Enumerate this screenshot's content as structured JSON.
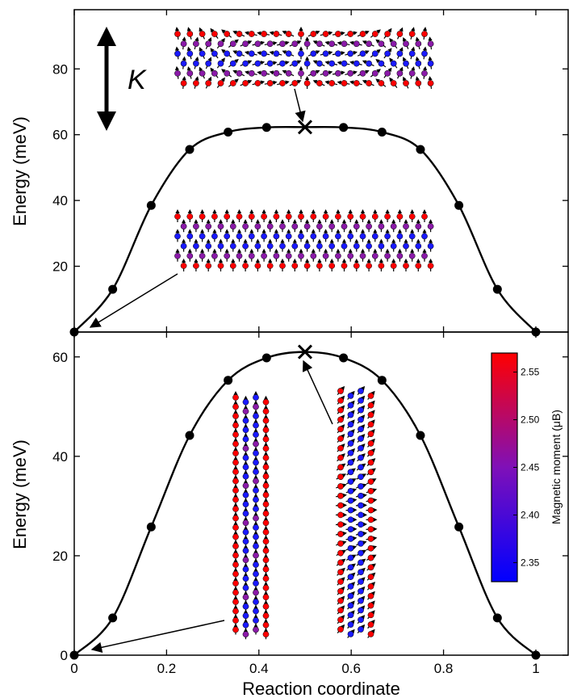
{
  "chart_data": [
    {
      "type": "line",
      "panel": "top",
      "ylabel": "Energy (meV)",
      "xlabel": "",
      "xlim": [
        0,
        1.07
      ],
      "ylim": [
        0,
        98
      ],
      "yticks": [
        20,
        40,
        60,
        80
      ],
      "xticks": [
        0,
        0.2,
        0.4,
        0.6,
        0.8,
        1
      ],
      "series": [
        {
          "values_x": [
            0,
            0.0833,
            0.1667,
            0.25,
            0.3333,
            0.4167,
            0.5,
            0.5833,
            0.6667,
            0.75,
            0.8333,
            0.9167,
            1.0
          ],
          "values_y": [
            0,
            13,
            38.5,
            55.5,
            60.8,
            62.2,
            62.3,
            62.2,
            60.8,
            55.5,
            38.5,
            13,
            0
          ],
          "saddle_x": 0.5,
          "saddle_y": 62.3
        }
      ],
      "annotation": "K"
    },
    {
      "type": "line",
      "panel": "bottom",
      "ylabel": "Energy (meV)",
      "xlabel": "Reaction coordinate",
      "xlim": [
        0,
        1.07
      ],
      "ylim": [
        0,
        65
      ],
      "yticks": [
        0,
        20,
        40,
        60
      ],
      "xticks": [
        0,
        0.2,
        0.4,
        0.6,
        0.8,
        1
      ],
      "xticklabels": [
        "0",
        "0.2",
        "0.4",
        "0.6",
        "0.8",
        "1"
      ],
      "series": [
        {
          "values_x": [
            0,
            0.0833,
            0.1667,
            0.25,
            0.3333,
            0.4167,
            0.5,
            0.5833,
            0.6667,
            0.75,
            0.8333,
            0.9167,
            1.0
          ],
          "values_y": [
            0,
            7.5,
            25.8,
            44.2,
            55.3,
            59.8,
            61.0,
            59.8,
            55.3,
            44.2,
            25.8,
            7.5,
            0
          ],
          "saddle_x": 0.5,
          "saddle_y": 61.0
        }
      ],
      "colorbar": {
        "title": "Magnetic moment (μB)",
        "range": [
          2.33,
          2.57
        ],
        "ticks": [
          2.35,
          2.4,
          2.45,
          2.5,
          2.55
        ],
        "ticklabels": [
          "2.35",
          "2.40",
          "2.45",
          "2.50",
          "2.55"
        ],
        "colors": [
          "#0000ff",
          "#ff0000"
        ]
      }
    }
  ],
  "colors": {
    "spin_high": "#ff0000",
    "spin_mid": "#8a1aa8",
    "spin_low": "#1a1aff",
    "line": "#000000"
  }
}
